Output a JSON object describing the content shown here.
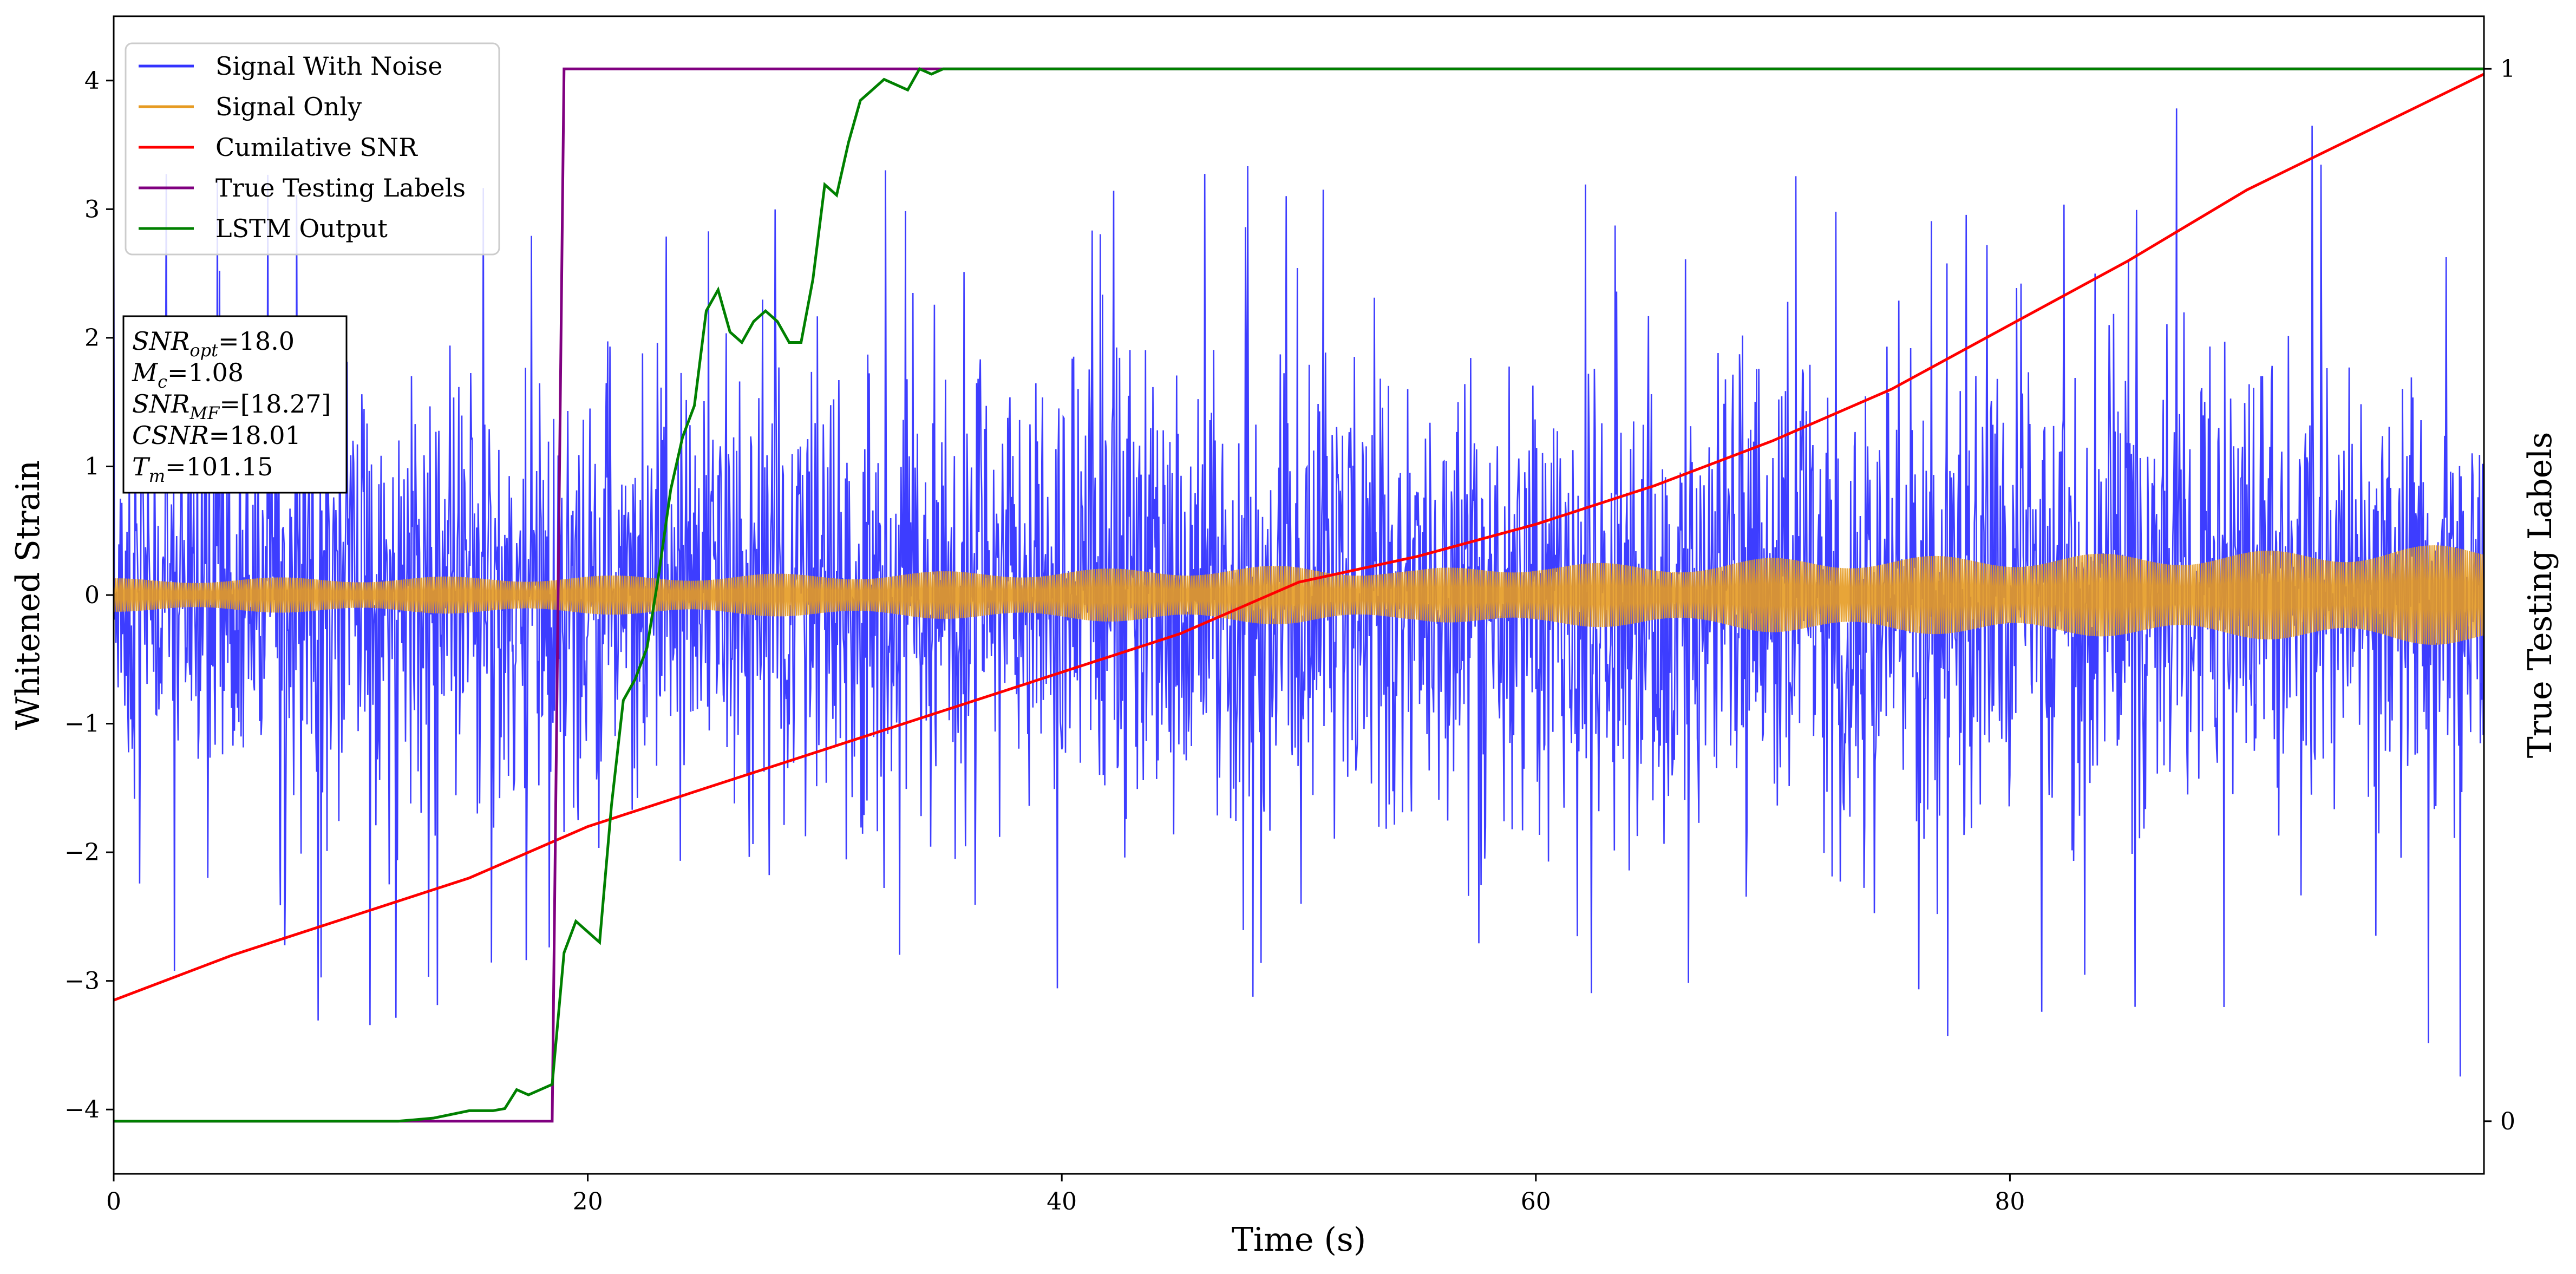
{
  "chart_data": {
    "type": "line",
    "xlabel": "Time (s)",
    "ylabel": "Whitened Strain",
    "y2label": "True Testing Labels",
    "xlim": [
      0,
      100
    ],
    "ylim": [
      -4.5,
      4.5
    ],
    "y2lim": [
      -0.05,
      1.05
    ],
    "xticks": [
      0,
      20,
      40,
      60,
      80
    ],
    "yticks": [
      -4,
      -3,
      -2,
      -1,
      0,
      1,
      2,
      3,
      4
    ],
    "y2ticks": [
      0,
      1
    ],
    "grid": false,
    "legend_position": "top-left",
    "series": [
      {
        "name": "Signal With Noise",
        "color": "#3333ff",
        "axis": "left",
        "kind": "noise",
        "envelope": {
          "x": [
            0,
            25,
            50,
            75,
            100
          ],
          "typical_amplitude": [
            1.4,
            1.45,
            1.45,
            1.5,
            1.5
          ],
          "peak_amplitude": [
            3.3,
            3.4,
            3.5,
            3.6,
            4.1
          ]
        }
      },
      {
        "name": "Signal Only",
        "color": "#e69b22",
        "axis": "left",
        "kind": "chirp",
        "envelope": {
          "x": [
            0,
            10,
            20,
            30,
            40,
            50,
            55,
            60,
            65,
            70,
            80,
            90,
            100
          ],
          "amplitude": [
            0.13,
            0.14,
            0.15,
            0.17,
            0.2,
            0.23,
            0.2,
            0.26,
            0.24,
            0.29,
            0.31,
            0.34,
            0.4
          ]
        }
      },
      {
        "name": "Cumilative SNR",
        "color": "#ff0000",
        "axis": "left",
        "x": [
          0,
          5,
          10,
          15,
          20,
          25,
          30,
          35,
          40,
          45,
          50,
          55,
          60,
          65,
          70,
          75,
          80,
          85,
          90,
          95,
          100
        ],
        "y": [
          -3.15,
          -2.8,
          -2.5,
          -2.2,
          -1.8,
          -1.5,
          -1.2,
          -0.9,
          -0.6,
          -0.3,
          0.1,
          0.3,
          0.55,
          0.85,
          1.2,
          1.6,
          2.1,
          2.6,
          3.15,
          3.6,
          4.05
        ]
      },
      {
        "name": "True Testing Labels",
        "color": "#800080",
        "axis": "right",
        "x": [
          0,
          18.5,
          19.0,
          100
        ],
        "y": [
          0,
          0,
          1,
          1
        ]
      },
      {
        "name": "LSTM Output",
        "color": "#008000",
        "axis": "right",
        "x": [
          0,
          12,
          13.5,
          15,
          16,
          16.5,
          17,
          17.5,
          18,
          18.5,
          19,
          19.5,
          20,
          20.5,
          21,
          21.5,
          22,
          22.5,
          23,
          23.5,
          24,
          24.5,
          25,
          25.5,
          26,
          26.5,
          27,
          27.5,
          28,
          28.5,
          29,
          29.5,
          30,
          30.5,
          31,
          31.5,
          32,
          32.5,
          33,
          33.5,
          34,
          34.5,
          35,
          35.5,
          36,
          37,
          38,
          40,
          45,
          100
        ],
        "y": [
          0,
          0,
          0.003,
          0.01,
          0.01,
          0.012,
          0.03,
          0.025,
          0.03,
          0.035,
          0.16,
          0.19,
          0.18,
          0.17,
          0.3,
          0.4,
          0.42,
          0.45,
          0.52,
          0.6,
          0.65,
          0.68,
          0.77,
          0.79,
          0.75,
          0.74,
          0.76,
          0.77,
          0.76,
          0.74,
          0.74,
          0.8,
          0.89,
          0.88,
          0.93,
          0.97,
          0.98,
          0.99,
          0.985,
          0.98,
          1.0,
          0.995,
          1.0,
          1.0,
          1.0,
          1.0,
          1.0,
          1.0,
          1.0,
          1.0
        ]
      }
    ]
  },
  "info_box": {
    "snr_opt_main": "SNR",
    "snr_opt_sub": "opt",
    "snr_opt_val": "=18.0",
    "mc_main": "M",
    "mc_sub": "c",
    "mc_val": "=1.08",
    "snr_mf_main": "SNR",
    "snr_mf_sub": "MF",
    "snr_mf_val": "=[18.27]",
    "csnr_main": "CSNR",
    "csnr_val": "=18.01",
    "tm_main": "T",
    "tm_sub": "m",
    "tm_val": "=101.15"
  }
}
